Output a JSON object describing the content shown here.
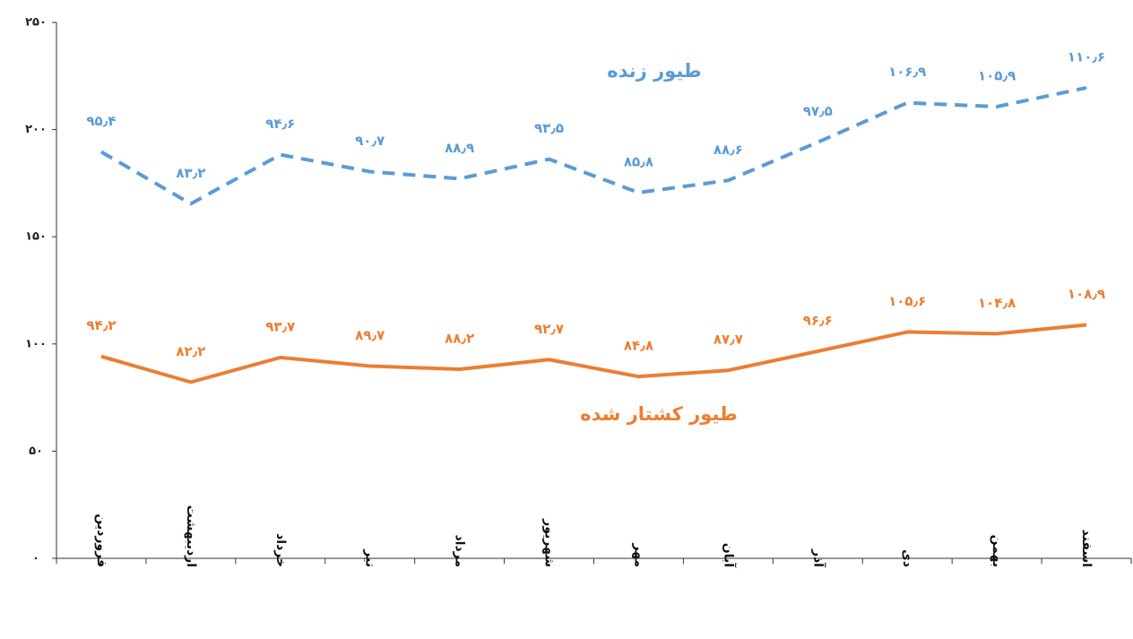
{
  "chart_data": {
    "type": "line",
    "stacked": true,
    "categories": [
      "فروردین",
      "اردیبهشت",
      "خرداد",
      "تیر",
      "مرداد",
      "شهریور",
      "مهر",
      "آبان",
      "آذر",
      "دی",
      "بهمن",
      "اسفند"
    ],
    "series": [
      {
        "name": "طیور کشتار شده",
        "color": "#ed7d31",
        "dashed": false,
        "values": [
          94.2,
          82.2,
          93.7,
          89.7,
          88.2,
          92.7,
          84.8,
          87.7,
          96.6,
          105.6,
          104.8,
          108.9
        ],
        "value_labels": [
          "۹۴٫۲",
          "۸۲٫۲",
          "۹۳٫۷",
          "۸۹٫۷",
          "۸۸٫۲",
          "۹۲٫۷",
          "۸۴٫۸",
          "۸۷٫۷",
          "۹۶٫۶",
          "۱۰۵٫۶",
          "۱۰۴٫۸",
          "۱۰۸٫۹"
        ]
      },
      {
        "name": "طیور زنده",
        "color": "#5b9bd5",
        "dashed": true,
        "values": [
          95.4,
          83.2,
          94.6,
          90.7,
          88.9,
          93.5,
          85.8,
          88.6,
          97.5,
          106.9,
          105.9,
          110.6
        ],
        "value_labels": [
          "۹۵٫۴",
          "۸۳٫۲",
          "۹۴٫۶",
          "۹۰٫۷",
          "۸۸٫۹",
          "۹۳٫۵",
          "۸۵٫۸",
          "۸۸٫۶",
          "۹۷٫۵",
          "۱۰۶٫۹",
          "۱۰۵٫۹",
          "۱۱۰٫۶"
        ]
      }
    ],
    "ylim": [
      0,
      250
    ],
    "yticks": [
      {
        "value": 0,
        "label": "۰"
      },
      {
        "value": 50,
        "label": "۵۰"
      },
      {
        "value": 100,
        "label": "۱۰۰"
      },
      {
        "value": 150,
        "label": "۱۵۰"
      },
      {
        "value": 200,
        "label": "۲۰۰"
      },
      {
        "value": 250,
        "label": "۲۵۰"
      }
    ],
    "grid": false
  }
}
